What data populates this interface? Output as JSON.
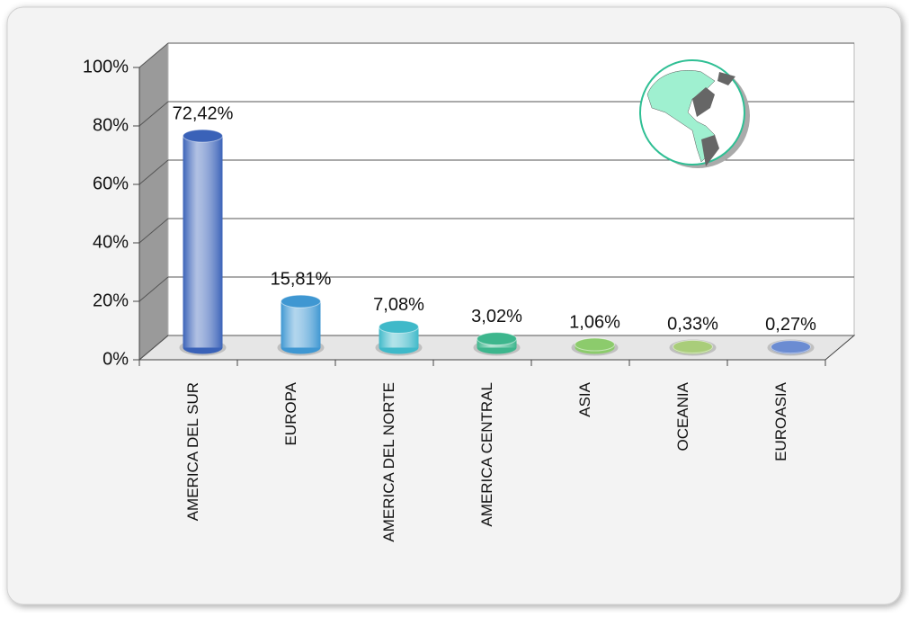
{
  "chart_data": {
    "type": "bar",
    "categories": [
      "AMERICA DEL SUR",
      "EUROPA",
      "AMERICA DEL NORTE",
      "AMERICA CENTRAL",
      "ASIA",
      "OCEANIA",
      "EUROASIA"
    ],
    "values": [
      72.42,
      15.81,
      7.08,
      3.02,
      1.06,
      0.33,
      0.27
    ],
    "value_labels": [
      "72,42%",
      "15,81%",
      "7,08%",
      "3,02%",
      "1,06%",
      "0,33%",
      "0,27%"
    ],
    "colors": [
      "#3a62b8",
      "#3f97d2",
      "#3fb9c9",
      "#3db68d",
      "#8ccb6c",
      "#a9cd7a",
      "#6b8cd2"
    ],
    "ylim": [
      0,
      100
    ],
    "yticks": [
      {
        "value": 0,
        "label": "0%"
      },
      {
        "value": 20,
        "label": "20%"
      },
      {
        "value": 40,
        "label": "40%"
      },
      {
        "value": 60,
        "label": "60%"
      },
      {
        "value": 80,
        "label": "80%"
      },
      {
        "value": 100,
        "label": "100%"
      }
    ],
    "grid": true
  }
}
